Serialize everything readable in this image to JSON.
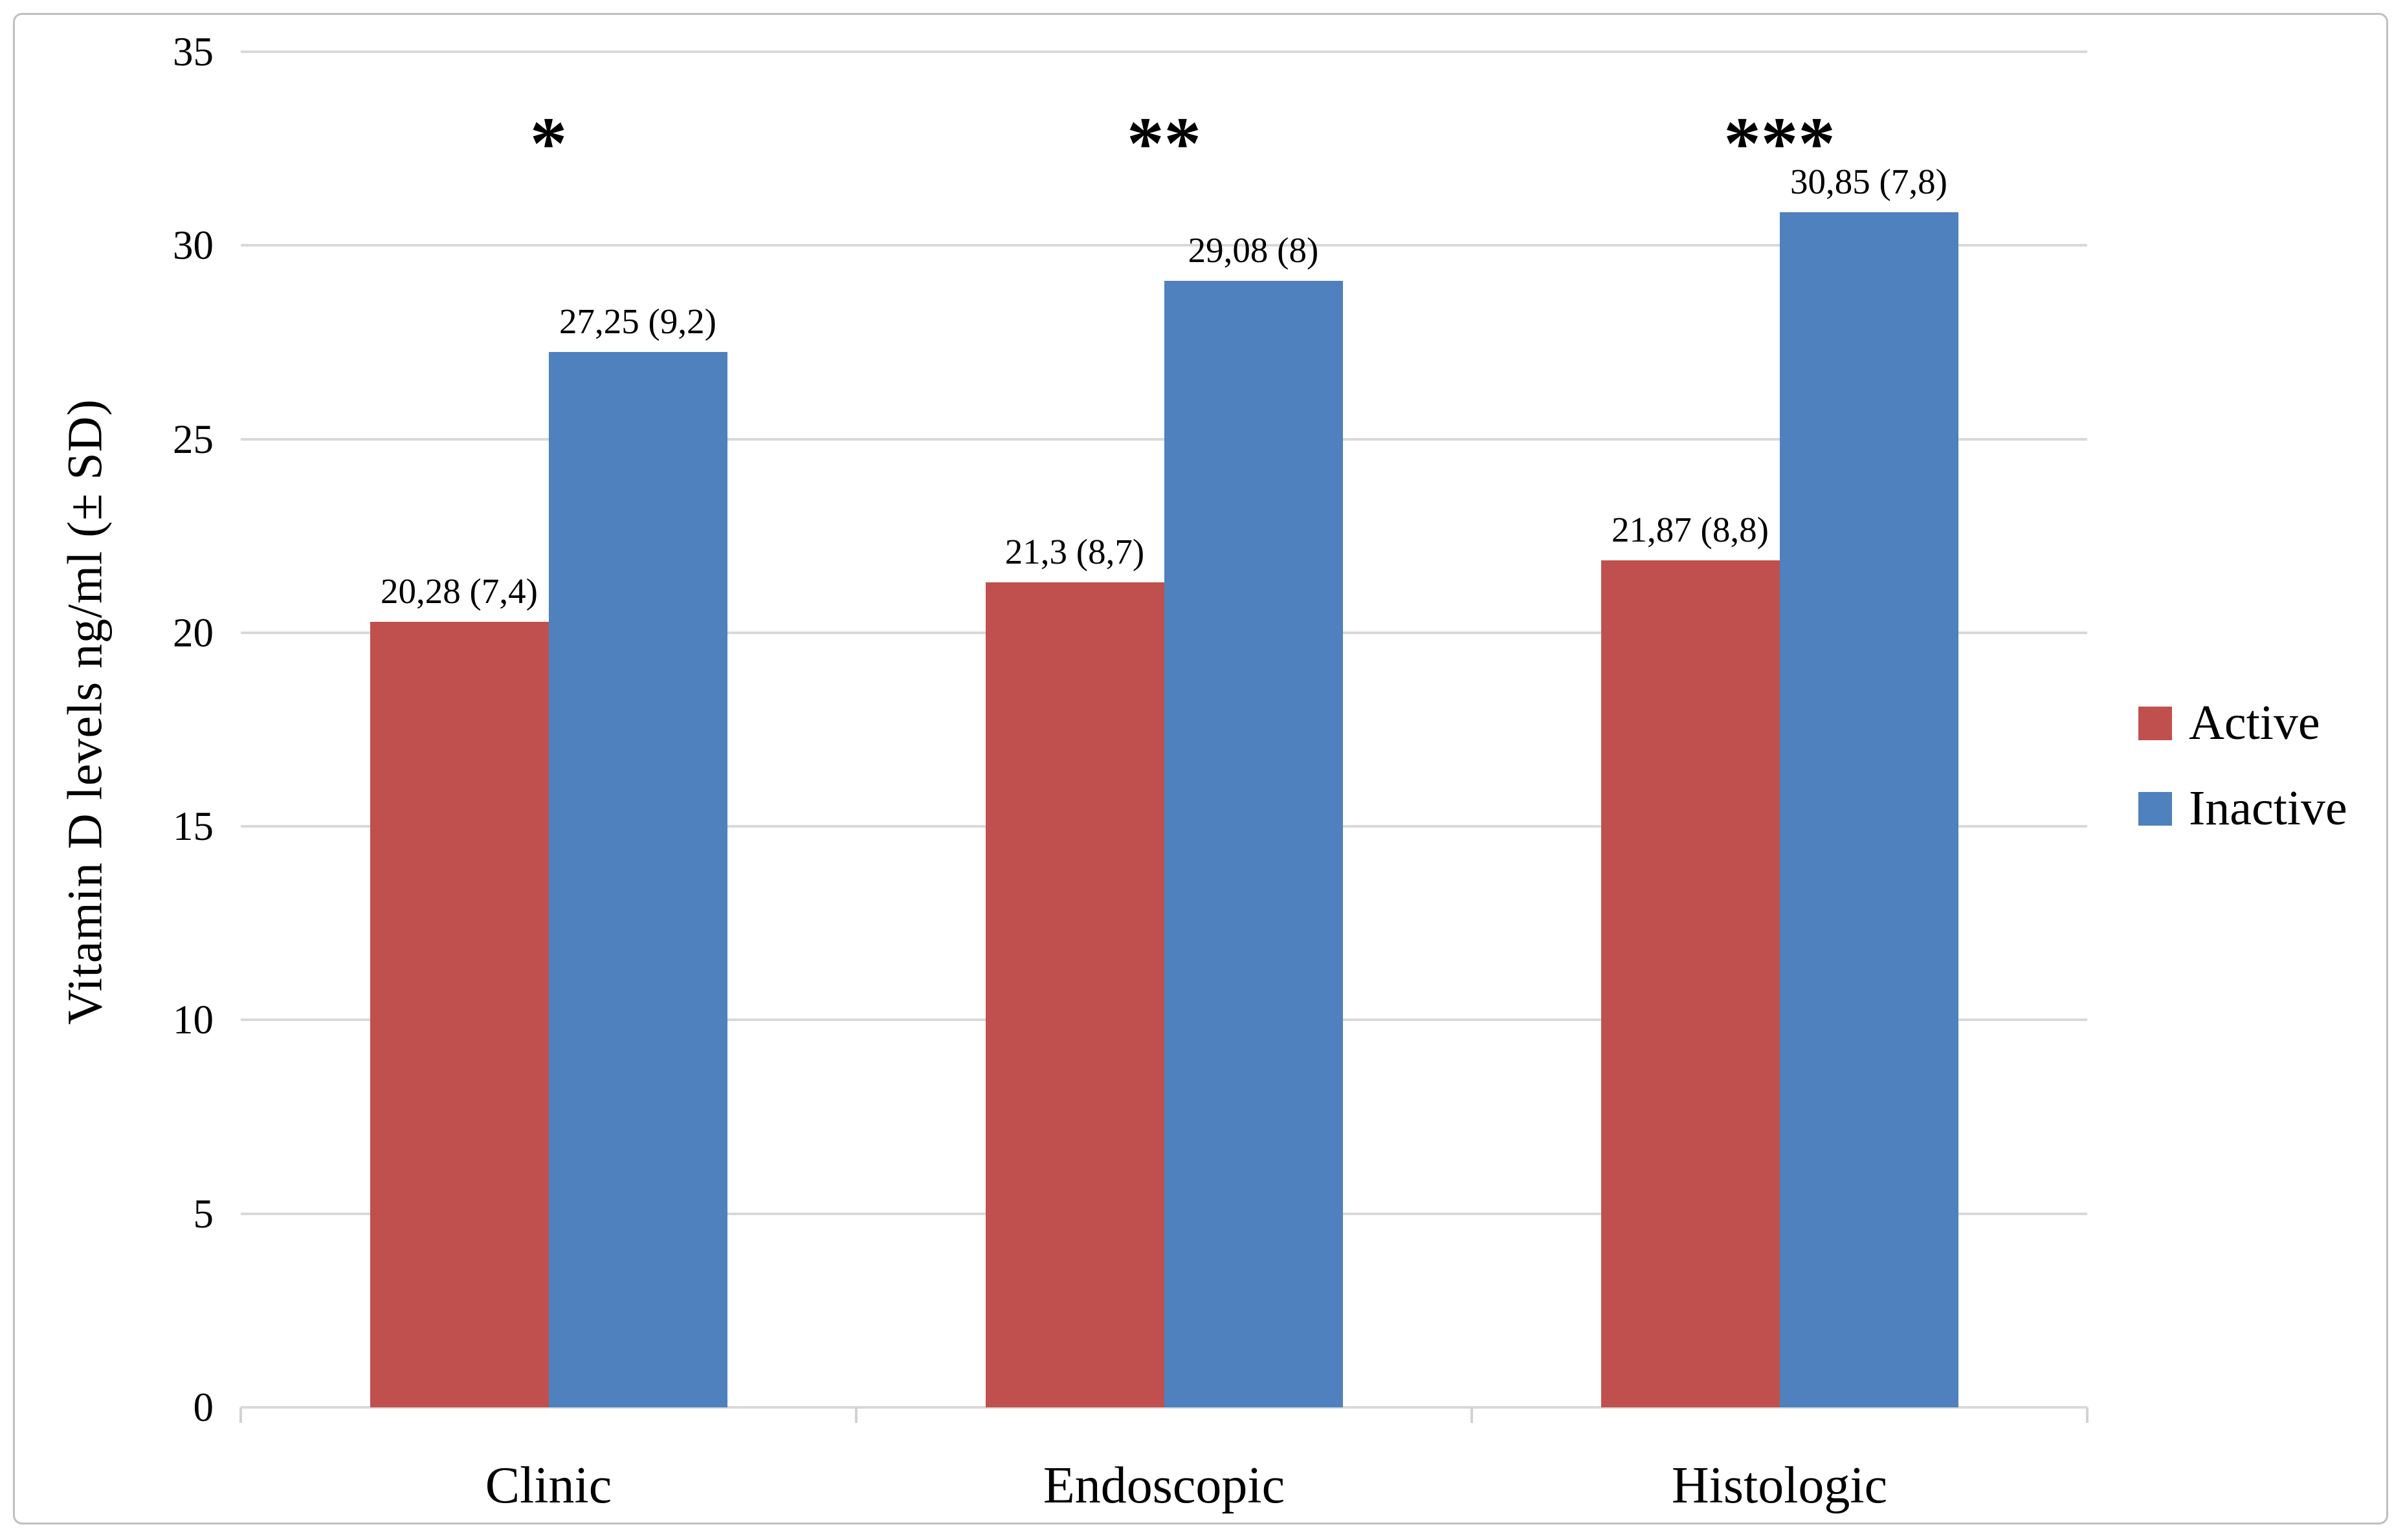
{
  "figure": {
    "background": "#FFFFFF",
    "border_color": "#BFBFBF"
  },
  "chart_data": {
    "type": "bar",
    "title": "",
    "xlabel": "",
    "ylabel": "Vitamin D levels ng/ml (± SD)",
    "ylim": [
      0,
      35
    ],
    "yticks": [
      0,
      5,
      10,
      15,
      20,
      25,
      30,
      35
    ],
    "grid": true,
    "gridline_color": "#D9D9D9",
    "legend_position": "right",
    "categories": [
      "Clinic",
      "Endoscopic",
      "Histologic"
    ],
    "series": [
      {
        "name": "Active",
        "color": "#C0504D",
        "values": [
          20.28,
          21.3,
          21.87
        ],
        "data_labels": [
          "20,28 (7,4)",
          "21,3 (8,7)",
          "21,87 (8,8)"
        ]
      },
      {
        "name": "Inactive",
        "color": "#4E81BD",
        "values": [
          27.25,
          29.08,
          30.85
        ],
        "data_labels": [
          "27,25 (9,2)",
          "29,08 (8)",
          "30,85 (7,8)"
        ]
      }
    ],
    "significance_markers": [
      "*",
      "**",
      "***"
    ]
  },
  "legend": {
    "items": [
      {
        "label": "Active",
        "color": "#C0504D"
      },
      {
        "label": "Inactive",
        "color": "#4E81BD"
      }
    ]
  }
}
